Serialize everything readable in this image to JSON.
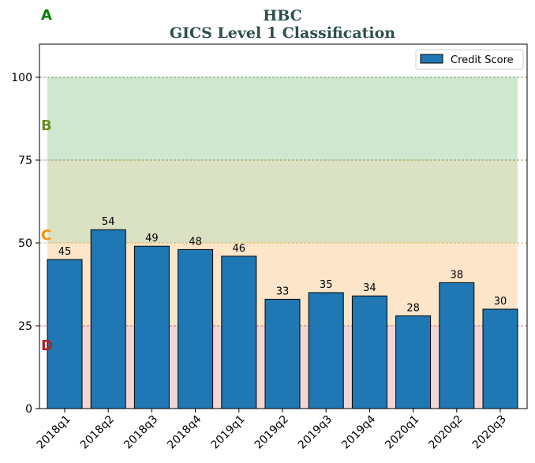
{
  "chart_data": {
    "type": "bar",
    "title": "HBC",
    "subtitle": "GICS Level 1 Classification",
    "xlabel": "",
    "ylabel": "",
    "ylim": [
      0,
      110
    ],
    "yticks": [
      0,
      25,
      50,
      75,
      100
    ],
    "categories": [
      "2018q1",
      "2018q2",
      "2018q3",
      "2018q4",
      "2019q1",
      "2019q2",
      "2019q3",
      "2019q4",
      "2020q1",
      "2020q2",
      "2020q3"
    ],
    "series": [
      {
        "name": "Credit Score",
        "values": [
          45,
          54,
          49,
          48,
          46,
          33,
          35,
          34,
          28,
          38,
          30
        ],
        "color": "#1f77b4"
      }
    ],
    "legend_position": "top-right",
    "grid": false,
    "zones": [
      {
        "label": "A",
        "from": 100,
        "to": 110,
        "color": "#008000"
      },
      {
        "label": "B",
        "from": 75,
        "to": 100,
        "color": "#6b8e23",
        "fill": "#cfe6cf"
      },
      {
        "label": "C",
        "from": 50,
        "to": 75,
        "color": "#ff8c00",
        "fill": "#dbe1c3"
      },
      {
        "label": "D",
        "from": 25,
        "to": 50,
        "color": "#b22222",
        "fill": "#fde5c9"
      }
    ],
    "bottom_zone_fill": "#f2d6d6",
    "threshold_lines": [
      {
        "value": 100,
        "color": "#2e8b2e"
      },
      {
        "value": 75,
        "color": "#7a8b2e"
      },
      {
        "value": 50,
        "color": "#e6a23c"
      },
      {
        "value": 25,
        "color": "#d04040"
      }
    ]
  }
}
